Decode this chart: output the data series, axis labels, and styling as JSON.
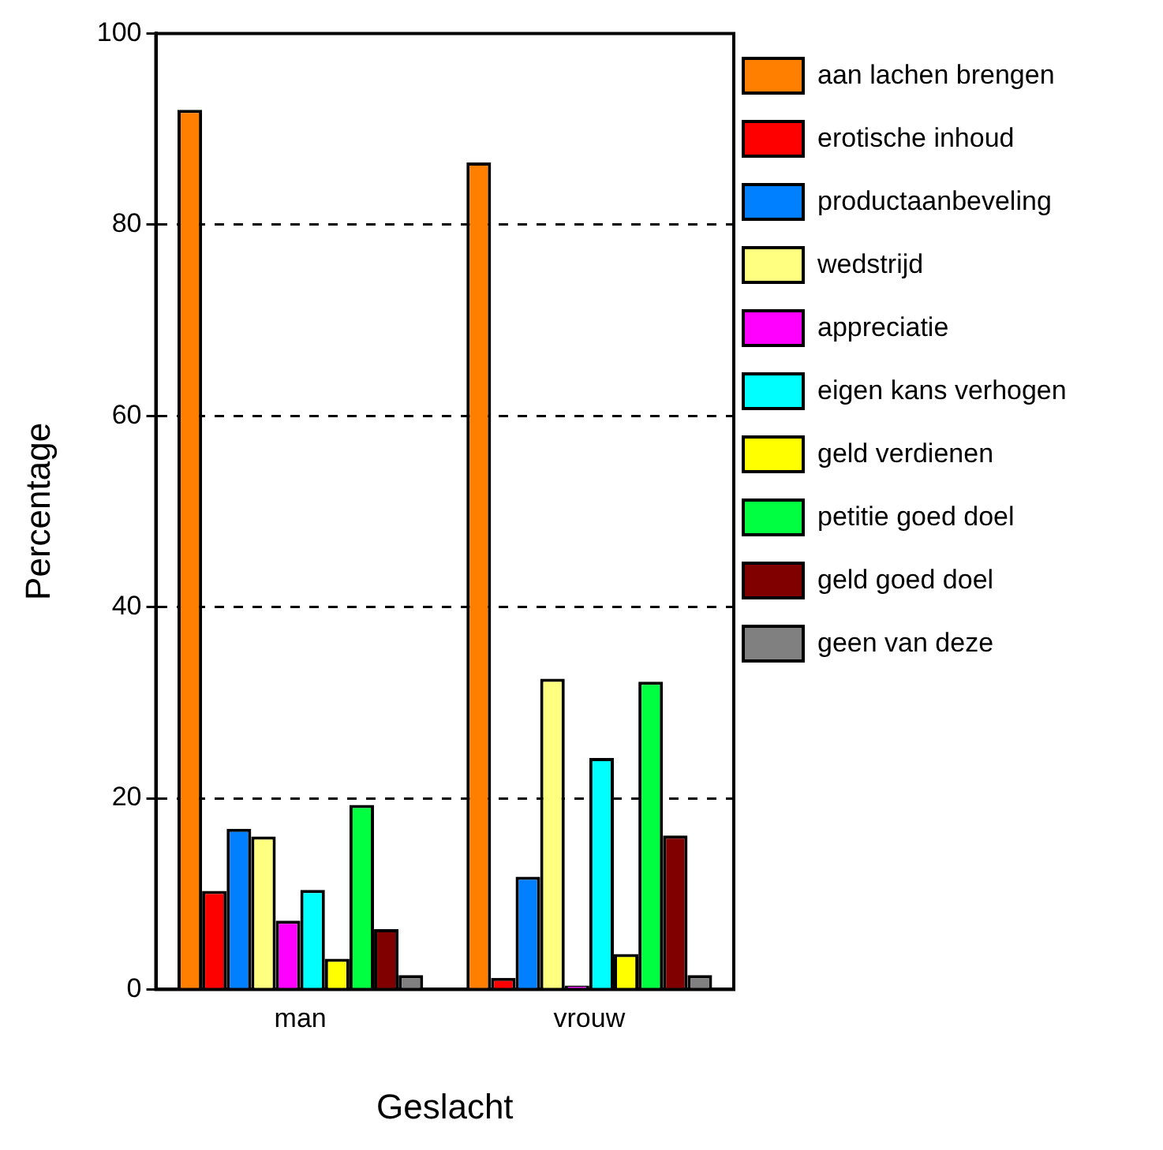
{
  "chart_data": {
    "type": "bar",
    "xlabel": "Geslacht",
    "ylabel": "Percentage",
    "categories": [
      "man",
      "vrouw"
    ],
    "ylim": [
      0,
      100
    ],
    "yticks": [
      0,
      20,
      40,
      60,
      80,
      100
    ],
    "grid": "y",
    "legend": "right",
    "series": [
      {
        "name": "aan lachen brengen",
        "color": "#ff8000",
        "values": [
          92,
          86.5
        ]
      },
      {
        "name": "erotische inhoud",
        "color": "#ff0000",
        "values": [
          10.3,
          1.2
        ]
      },
      {
        "name": "productaanbeveling",
        "color": "#0080ff",
        "values": [
          16.8,
          11.8
        ]
      },
      {
        "name": "wedstrijd",
        "color": "#ffff80",
        "values": [
          16,
          32.5
        ]
      },
      {
        "name": "appreciatie",
        "color": "#ff00ff",
        "values": [
          7.2,
          0.4
        ]
      },
      {
        "name": "eigen kans verhogen",
        "color": "#00ffff",
        "values": [
          10.4,
          24.2
        ]
      },
      {
        "name": "geld verdienen",
        "color": "#ffff00",
        "values": [
          3.2,
          3.7
        ]
      },
      {
        "name": "petitie goed doel",
        "color": "#00ff40",
        "values": [
          19.3,
          32.2
        ]
      },
      {
        "name": "geld goed doel",
        "color": "#800000",
        "values": [
          6.3,
          16.1
        ]
      },
      {
        "name": "geen van deze",
        "color": "#808080",
        "values": [
          1.5,
          1.5
        ]
      }
    ]
  }
}
